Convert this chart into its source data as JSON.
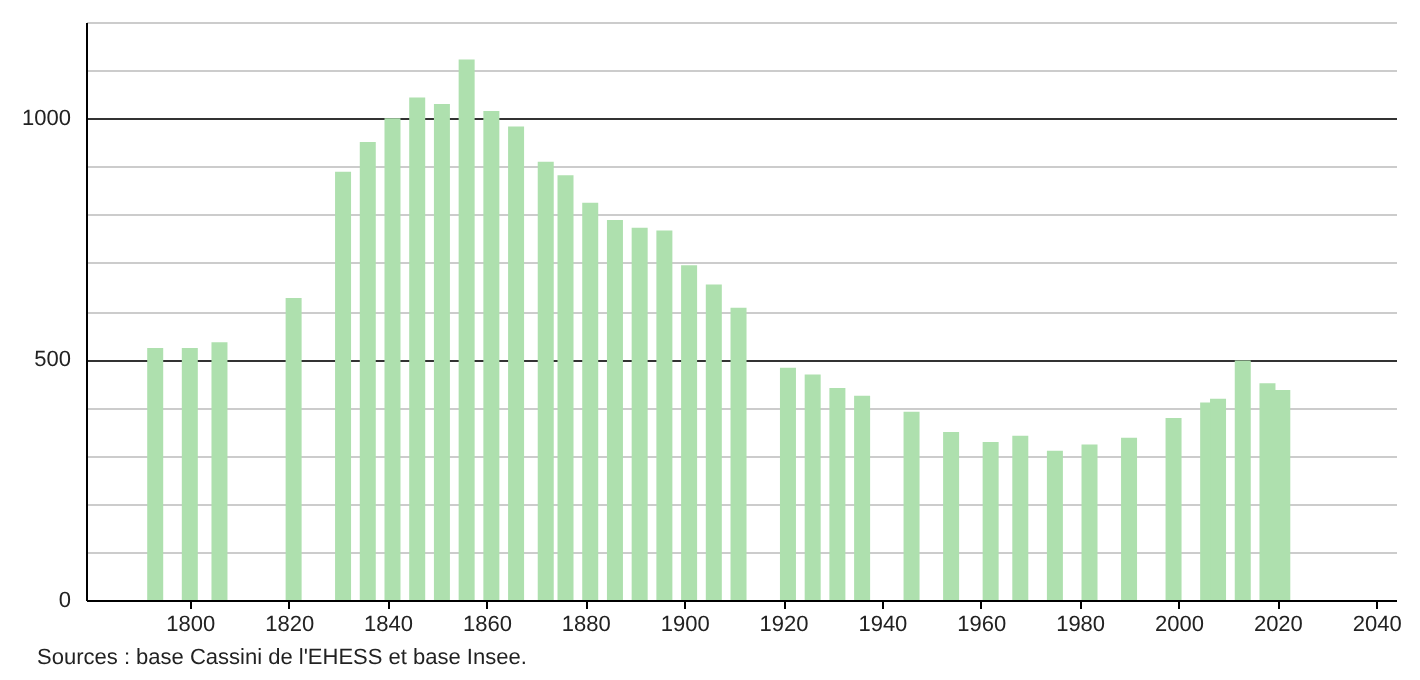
{
  "chart_data": {
    "type": "bar",
    "x": [
      1793,
      1800,
      1806,
      1821,
      1831,
      1836,
      1841,
      1846,
      1851,
      1856,
      1861,
      1866,
      1872,
      1876,
      1881,
      1886,
      1891,
      1896,
      1901,
      1906,
      1911,
      1921,
      1926,
      1931,
      1936,
      1946,
      1954,
      1962,
      1968,
      1975,
      1982,
      1990,
      1999,
      2006,
      2008,
      2013,
      2018,
      2021
    ],
    "values": [
      523,
      523,
      535,
      627,
      889,
      951,
      1000,
      1043,
      1030,
      1122,
      1015,
      983,
      910,
      882,
      825,
      789,
      773,
      767,
      695,
      655,
      607,
      482,
      468,
      440,
      424,
      391,
      349,
      328,
      341,
      310,
      323,
      337,
      378,
      410,
      418,
      497,
      450,
      436
    ],
    "color": "#aee0ae",
    "xlim": [
      1779,
      2044
    ],
    "xticks": [
      1800,
      1820,
      1840,
      1860,
      1880,
      1900,
      1920,
      1940,
      1960,
      1980,
      2000,
      2020,
      2040
    ],
    "ylim": [
      0,
      1200
    ],
    "yticks": [
      0,
      {
        "value": 100,
        "label": null
      },
      {
        "value": 200,
        "label": null
      },
      {
        "value": 300,
        "label": null
      },
      {
        "value": 400,
        "label": null
      },
      500,
      {
        "value": 600,
        "label": null
      },
      {
        "value": 700,
        "label": null
      },
      {
        "value": 800,
        "label": null
      },
      {
        "value": 900,
        "label": null
      },
      1000,
      {
        "value": 1100,
        "label": null
      },
      {
        "value": 1200,
        "label": null
      }
    ],
    "grid": "y",
    "annotations": [
      "Sources : base Cassini de l'EHESS et base Insee."
    ]
  }
}
